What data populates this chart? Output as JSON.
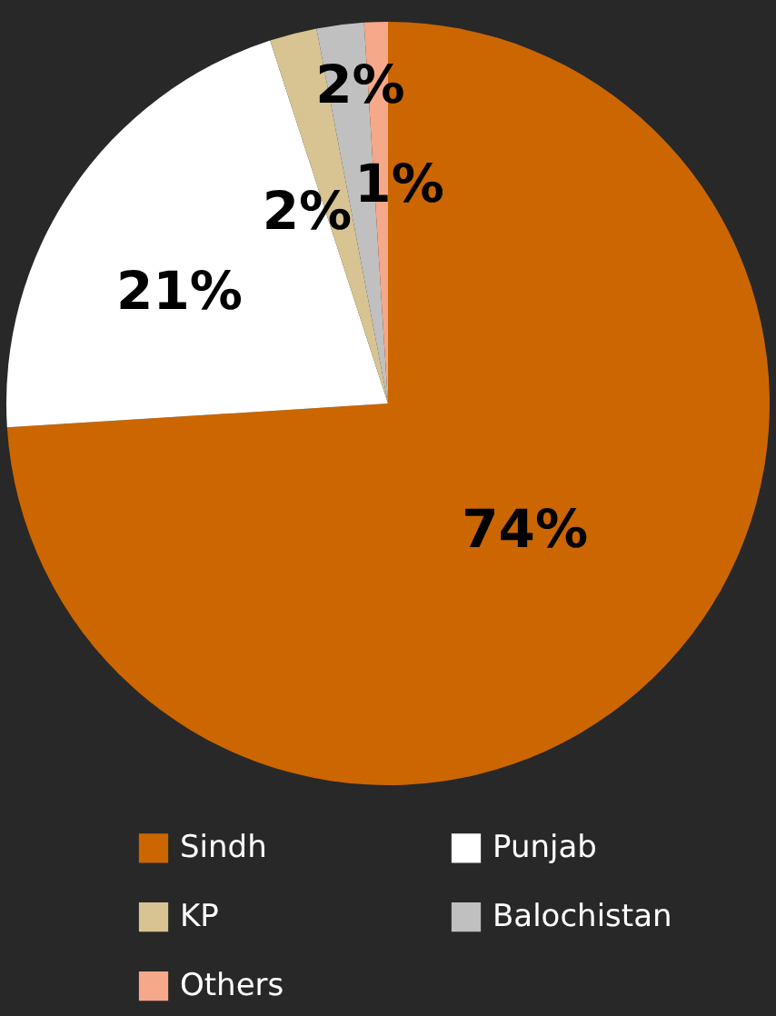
{
  "chart_data": {
    "type": "pie",
    "categories": [
      "Sindh",
      "Punjab",
      "KP",
      "Balochistan",
      "Others"
    ],
    "values": [
      74,
      21,
      2,
      2,
      1
    ],
    "value_labels": [
      "74%",
      "21%",
      "2%",
      "2%",
      "1%"
    ],
    "colors": [
      "#cc6600",
      "#ffffff",
      "#d8c492",
      "#c0c0c0",
      "#f5a88a"
    ],
    "legend": "bottom"
  }
}
